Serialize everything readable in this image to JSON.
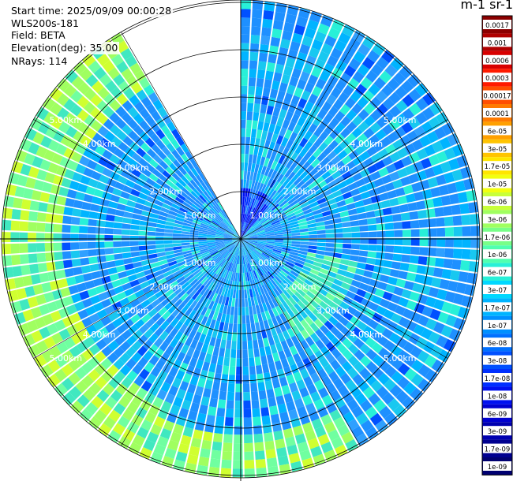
{
  "info": {
    "start_time": "Start time: 2025/09/09 00:00:28",
    "instrument": "WLS200s-181",
    "field": "Field: BETA",
    "elevation": "Elevation(deg): 35.00",
    "nrays": "NRays: 114"
  },
  "colorbar": {
    "title": "m-1 sr-1",
    "ticks": [
      "0.0017",
      "0.001",
      "0.0006",
      "0.0003",
      "0.00017",
      "0.0001",
      "6e-05",
      "3e-05",
      "1.7e-05",
      "1e-05",
      "6e-06",
      "3e-06",
      "1.7e-06",
      "1e-06",
      "6e-07",
      "3e-07",
      "1.7e-07",
      "1e-07",
      "6e-08",
      "3e-08",
      "1.7e-08",
      "1e-08",
      "6e-09",
      "3e-09",
      "1.7e-09",
      "1e-09"
    ],
    "colors": [
      "#8b0000",
      "#b00000",
      "#d80000",
      "#ff1a00",
      "#ff4e00",
      "#ff7a00",
      "#ffa000",
      "#ffc400",
      "#ffe600",
      "#f2ff10",
      "#c8ff3a",
      "#a0ff60",
      "#78ff88",
      "#50ffb0",
      "#28f0d8",
      "#00d8ff",
      "#00b4ff",
      "#0090ff",
      "#0070ff",
      "#0050ff",
      "#0030ff",
      "#0010f0",
      "#0000d0",
      "#0000b0",
      "#000090",
      "#000070"
    ]
  },
  "chart_data": {
    "type": "heatmap",
    "projection": "polar (PPI)",
    "range_rings_km": [
      1,
      2,
      3,
      4,
      5
    ],
    "ring_labels": [
      "1.00km",
      "2.00km",
      "3.00km",
      "4.00km",
      "5.00km"
    ],
    "nrays": 114,
    "missing_sector_deg": [
      -30,
      0
    ],
    "color_scale": "log",
    "value_range": [
      1e-09,
      0.0017
    ],
    "description_regions": [
      {
        "azimuth_range_deg": [
          200,
          330
        ],
        "range_km": [
          3.6,
          5.2
        ],
        "value_approx": 3e-06
      },
      {
        "azimuth_range_deg": [
          0,
          200
        ],
        "range_km": [
          0,
          5.2
        ],
        "value_approx": 3e-08
      }
    ]
  }
}
